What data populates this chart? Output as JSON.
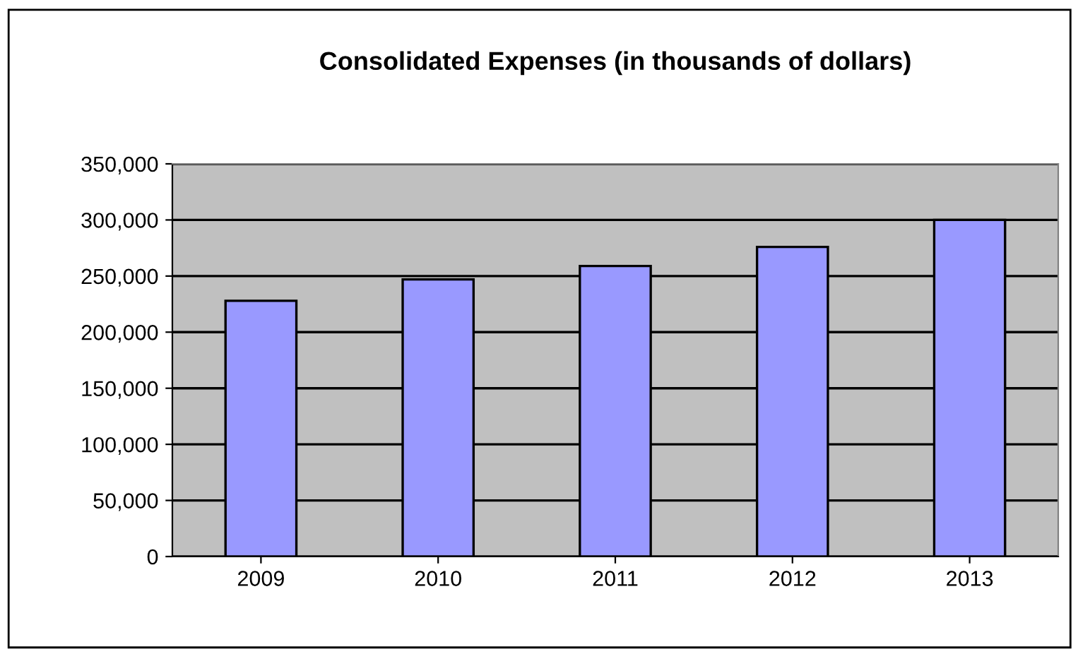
{
  "chart_data": {
    "type": "bar",
    "title": "Consolidated Expenses (in thousands of dollars)",
    "categories": [
      "2009",
      "2010",
      "2011",
      "2012",
      "2013"
    ],
    "values": [
      228000,
      247000,
      259000,
      276000,
      300000
    ],
    "color": "#9999ff",
    "ylim": [
      0,
      350000
    ],
    "yticks": [
      {
        "value": 0,
        "label": "0"
      },
      {
        "value": 50000,
        "label": "50,000"
      },
      {
        "value": 100000,
        "label": "100,000"
      },
      {
        "value": 150000,
        "label": "150,000"
      },
      {
        "value": 200000,
        "label": "200,000"
      },
      {
        "value": 250000,
        "label": "250,000"
      },
      {
        "value": 300000,
        "label": "300,000"
      },
      {
        "value": 350000,
        "label": "350,000"
      }
    ],
    "grid": "y",
    "legend": false
  }
}
